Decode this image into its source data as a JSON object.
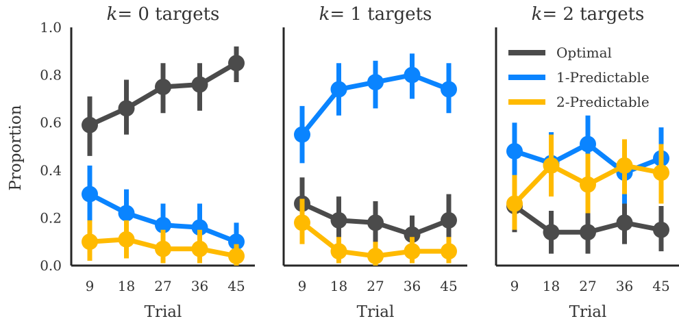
{
  "figure": {
    "ylabel": "Proportion",
    "xlabel": "Trial",
    "legend": {
      "location": "top-right of last panel",
      "entries": [
        "Optimal",
        "1-Predictable",
        "2-Predictable"
      ]
    },
    "colors": {
      "Optimal": "#4b4b4b",
      "1-Predictable": "#0a84ff",
      "2-Predictable": "#ffba00"
    }
  },
  "chart_data": [
    {
      "type": "line",
      "title_var": "k",
      "title_rest": "= 0 targets",
      "x": [
        9,
        18,
        27,
        36,
        45
      ],
      "xticks": [
        "9",
        "18",
        "27",
        "36",
        "45"
      ],
      "ylim": [
        0,
        1
      ],
      "yticks": [
        "0.0",
        "0.2",
        "0.4",
        "0.6",
        "0.8",
        "1.0"
      ],
      "series": [
        {
          "name": "Optimal",
          "values": [
            0.59,
            0.66,
            0.75,
            0.76,
            0.85
          ],
          "ci_low": [
            0.46,
            0.55,
            0.64,
            0.65,
            0.77
          ],
          "ci_high": [
            0.71,
            0.78,
            0.85,
            0.85,
            0.92
          ]
        },
        {
          "name": "1-Predictable",
          "values": [
            0.3,
            0.22,
            0.17,
            0.16,
            0.1
          ],
          "ci_low": [
            0.18,
            0.12,
            0.09,
            0.08,
            0.03
          ],
          "ci_high": [
            0.42,
            0.32,
            0.26,
            0.26,
            0.18
          ]
        },
        {
          "name": "2-Predictable",
          "values": [
            0.1,
            0.11,
            0.07,
            0.07,
            0.04
          ],
          "ci_low": [
            0.02,
            0.03,
            0.01,
            0.01,
            0.0
          ],
          "ci_high": [
            0.19,
            0.19,
            0.15,
            0.15,
            0.09
          ]
        }
      ]
    },
    {
      "type": "line",
      "title_var": "k",
      "title_rest": "= 1 targets",
      "x": [
        9,
        18,
        27,
        36,
        45
      ],
      "xticks": [
        "9",
        "18",
        "27",
        "36",
        "45"
      ],
      "ylim": [
        0,
        1
      ],
      "series": [
        {
          "name": "Optimal",
          "values": [
            0.26,
            0.19,
            0.18,
            0.13,
            0.19
          ],
          "ci_low": [
            0.16,
            0.1,
            0.09,
            0.05,
            0.1
          ],
          "ci_high": [
            0.37,
            0.29,
            0.27,
            0.21,
            0.3
          ]
        },
        {
          "name": "1-Predictable",
          "values": [
            0.55,
            0.74,
            0.77,
            0.8,
            0.74
          ],
          "ci_low": [
            0.43,
            0.63,
            0.66,
            0.7,
            0.64
          ],
          "ci_high": [
            0.67,
            0.85,
            0.86,
            0.89,
            0.85
          ]
        },
        {
          "name": "2-Predictable",
          "values": [
            0.18,
            0.06,
            0.04,
            0.06,
            0.06
          ],
          "ci_low": [
            0.09,
            0.01,
            0.0,
            0.01,
            0.01
          ],
          "ci_high": [
            0.28,
            0.12,
            0.1,
            0.12,
            0.12
          ]
        }
      ]
    },
    {
      "type": "line",
      "title_var": "k",
      "title_rest": "= 2 targets",
      "x": [
        9,
        18,
        27,
        36,
        45
      ],
      "xticks": [
        "9",
        "18",
        "27",
        "36",
        "45"
      ],
      "ylim": [
        0,
        1
      ],
      "series": [
        {
          "name": "Optimal",
          "values": [
            0.25,
            0.14,
            0.14,
            0.18,
            0.15
          ],
          "ci_low": [
            0.14,
            0.05,
            0.05,
            0.09,
            0.06
          ],
          "ci_high": [
            0.36,
            0.23,
            0.23,
            0.28,
            0.25
          ]
        },
        {
          "name": "1-Predictable",
          "values": [
            0.48,
            0.43,
            0.51,
            0.39,
            0.45
          ],
          "ci_low": [
            0.35,
            0.31,
            0.39,
            0.26,
            0.33
          ],
          "ci_high": [
            0.6,
            0.56,
            0.63,
            0.52,
            0.58
          ]
        },
        {
          "name": "2-Predictable",
          "values": [
            0.26,
            0.42,
            0.34,
            0.42,
            0.39
          ],
          "ci_low": [
            0.15,
            0.29,
            0.22,
            0.3,
            0.26
          ],
          "ci_high": [
            0.38,
            0.55,
            0.47,
            0.53,
            0.51
          ]
        }
      ]
    }
  ]
}
